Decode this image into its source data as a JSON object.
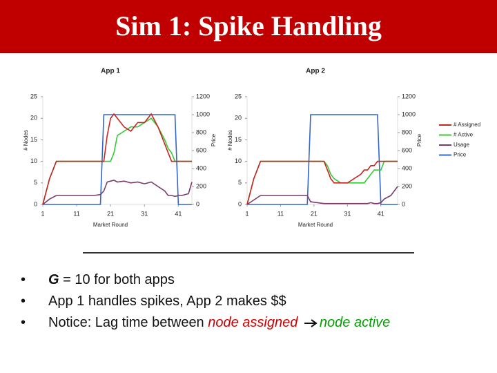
{
  "title": "Sim 1: Spike Handling",
  "chart_data": [
    {
      "type": "line",
      "title": "App 1",
      "xlabel": "Market Round",
      "ylabel": "# Nodes",
      "y2label": "Price",
      "x": [
        1,
        3,
        5,
        7,
        10,
        13,
        16,
        18,
        19,
        20,
        21,
        22,
        23,
        25,
        27,
        29,
        31,
        33,
        35,
        37,
        38,
        39,
        40,
        41,
        42,
        44,
        45
      ],
      "xlim": [
        1,
        45
      ],
      "xticks": [
        1,
        11,
        21,
        31,
        41
      ],
      "ylim": [
        0,
        25
      ],
      "yticks": [
        0,
        5,
        10,
        15,
        20,
        25
      ],
      "y2lim": [
        0,
        1200
      ],
      "y2ticks": [
        0,
        200,
        400,
        600,
        800,
        1000,
        1200
      ],
      "legend": false,
      "series": [
        {
          "color": "#cc2222",
          "values": [
            0,
            6,
            10,
            10,
            10,
            10,
            10,
            10,
            10,
            16,
            20,
            21,
            20,
            18,
            17,
            19,
            19,
            21,
            18,
            14,
            12,
            10,
            10,
            10,
            10,
            10,
            10
          ]
        },
        {
          "color": "#33cc33",
          "values": [
            0,
            6,
            10,
            10,
            10,
            10,
            10,
            10,
            10,
            10,
            10,
            12,
            16,
            17,
            18,
            18,
            19,
            20,
            18,
            15,
            13,
            12,
            10,
            10,
            10,
            10,
            10
          ]
        },
        {
          "color": "#7a3a6a",
          "axis": "y2",
          "values": [
            0,
            60,
            100,
            100,
            100,
            100,
            100,
            110,
            150,
            250,
            260,
            270,
            250,
            260,
            240,
            250,
            230,
            250,
            200,
            150,
            100,
            100,
            90,
            100,
            100,
            120,
            250
          ]
        },
        {
          "color": "#3366cc",
          "axis": "y2",
          "values": [
            0,
            0,
            0,
            0,
            0,
            0,
            0,
            0,
            1000,
            1000,
            1000,
            1000,
            1000,
            1000,
            1000,
            1000,
            1000,
            1000,
            1000,
            1000,
            1000,
            1000,
            1000,
            0,
            0,
            0,
            0
          ]
        }
      ]
    },
    {
      "type": "line",
      "title": "App 2",
      "xlabel": "Market Round",
      "ylabel": "# Nodes",
      "y2label": "Price",
      "x": [
        1,
        3,
        5,
        7,
        10,
        13,
        16,
        19,
        20,
        22,
        24,
        25,
        26,
        27,
        29,
        31,
        33,
        35,
        36,
        37,
        38,
        39,
        40,
        41,
        42,
        44,
        46
      ],
      "xlim": [
        1,
        46
      ],
      "xticks": [
        1,
        11,
        21,
        31,
        41
      ],
      "ylim": [
        0,
        25
      ],
      "yticks": [
        0,
        5,
        10,
        15,
        20,
        25
      ],
      "y2lim": [
        0,
        1200
      ],
      "y2ticks": [
        0,
        200,
        400,
        600,
        800,
        1000,
        1200
      ],
      "legend": "right",
      "series": [
        {
          "name": "# Assigned",
          "color": "#cc2222",
          "values": [
            0,
            6,
            10,
            10,
            10,
            10,
            10,
            10,
            10,
            10,
            10,
            8,
            6,
            5,
            5,
            5,
            6,
            7,
            8,
            8,
            9,
            9,
            10,
            10,
            10,
            10,
            10
          ]
        },
        {
          "name": "# Active",
          "color": "#33cc33",
          "values": [
            0,
            6,
            10,
            10,
            10,
            10,
            10,
            10,
            10,
            10,
            10,
            9,
            7,
            6,
            5,
            5,
            5,
            5,
            5,
            6,
            7,
            8,
            8,
            8,
            10,
            10,
            10
          ]
        },
        {
          "name": "Usage",
          "color": "#7a3a6a",
          "axis": "y2",
          "values": [
            0,
            50,
            100,
            100,
            100,
            100,
            100,
            100,
            30,
            20,
            10,
            10,
            10,
            10,
            10,
            10,
            10,
            10,
            10,
            10,
            20,
            10,
            10,
            20,
            60,
            100,
            200
          ]
        },
        {
          "name": "Price",
          "color": "#3366cc",
          "axis": "y2",
          "values": [
            0,
            0,
            0,
            0,
            0,
            0,
            0,
            0,
            1000,
            1000,
            1000,
            1000,
            1000,
            1000,
            1000,
            1000,
            1000,
            1000,
            1000,
            1000,
            1000,
            1000,
            1000,
            0,
            0,
            0,
            0
          ]
        }
      ]
    }
  ],
  "bullets": [
    [
      "G",
      " = 10 for both apps"
    ],
    [
      "App 1 handles spikes, App 2 makes $$"
    ],
    [
      "Notice: Lag time between ",
      "node assigned",
      "node active"
    ]
  ]
}
